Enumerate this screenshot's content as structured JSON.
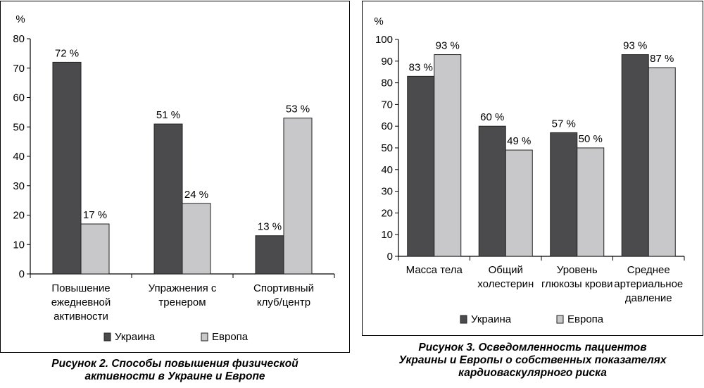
{
  "colors": {
    "ukraine": "#4b4b4d",
    "europe": "#c8c8ca",
    "axis": "#000000"
  },
  "figure2": {
    "caption_lines": [
      "Рисунок 2. Способы повышения физической",
      "активности в Украине и Европе"
    ]
  },
  "figure3": {
    "caption_lines": [
      "Рисунок 3. Осведомленность пациентов",
      "Украины и Европы о собственных показателях",
      "кардиоваскулярного риска"
    ]
  },
  "chart_data": [
    {
      "type": "bar",
      "ylabel": "%",
      "ylim": [
        0,
        80
      ],
      "yticks": [
        0,
        10,
        20,
        30,
        40,
        50,
        60,
        70,
        80
      ],
      "grid": false,
      "legend_position": "bottom",
      "categories": [
        [
          "Повышение",
          "ежедневной",
          "активности"
        ],
        [
          "Упражнения с",
          "тренером"
        ],
        [
          "Спортивный",
          "клуб/центр"
        ]
      ],
      "series": [
        {
          "name": "Украина",
          "values": [
            72,
            51,
            13
          ],
          "labels": [
            "72 %",
            "51 %",
            "13 %"
          ]
        },
        {
          "name": "Европа",
          "values": [
            17,
            24,
            53
          ],
          "labels": [
            "17 %",
            "24 %",
            "53 %"
          ]
        }
      ]
    },
    {
      "type": "bar",
      "ylabel": "%",
      "ylim": [
        0,
        100
      ],
      "yticks": [
        0,
        10,
        20,
        30,
        40,
        50,
        60,
        70,
        80,
        90,
        100
      ],
      "grid": false,
      "legend_position": "bottom",
      "categories": [
        [
          "Масса тела"
        ],
        [
          "Общий",
          "холестерин"
        ],
        [
          "Уровень",
          "глюкозы крови"
        ],
        [
          "Среднее",
          "артериальное",
          "давление"
        ]
      ],
      "series": [
        {
          "name": "Украина",
          "values": [
            83,
            60,
            57,
            93
          ],
          "labels": [
            "83 %",
            "60 %",
            "57 %",
            "93 %"
          ]
        },
        {
          "name": "Европа",
          "values": [
            93,
            49,
            50,
            87
          ],
          "labels": [
            "93 %",
            "49 %",
            "50 %",
            "87 %"
          ]
        }
      ]
    }
  ]
}
